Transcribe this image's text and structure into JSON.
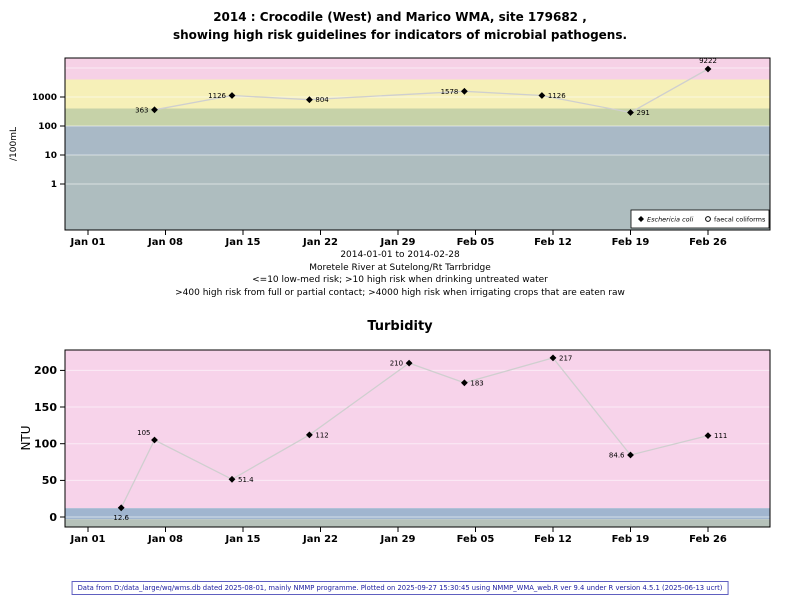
{
  "page": {
    "footer": "Data from D:/data_large/wq/wms.db dated 2025-08-01, mainly NMMP programme. Plotted on 2025-09-27 15:30:45 using NMMP_WMA_web.R ver 9.4 under R version 4.5.1 (2025-06-13 ucrt)"
  },
  "chart_data": [
    {
      "type": "line",
      "title_lines": [
        "2014 : Crocodile (West) and Marico WMA, site 179682 ,",
        "showing high risk guidelines for indicators of microbial pathogens."
      ],
      "ylabel": "/100mL",
      "yscale": "log",
      "ylim": [
        0.026,
        22100
      ],
      "xlim_days": [
        -2.08,
        61.6
      ],
      "x_ticks": [
        {
          "day": 0,
          "label": "Jan 01"
        },
        {
          "day": 7,
          "label": "Jan 08"
        },
        {
          "day": 14,
          "label": "Jan 15"
        },
        {
          "day": 21,
          "label": "Jan 22"
        },
        {
          "day": 28,
          "label": "Jan 29"
        },
        {
          "day": 35,
          "label": "Feb 05"
        },
        {
          "day": 42,
          "label": "Feb 12"
        },
        {
          "day": 49,
          "label": "Feb 19"
        },
        {
          "day": 56,
          "label": "Feb 26"
        }
      ],
      "y_ticks": [
        1,
        10,
        100,
        1000
      ],
      "gridlines": [
        1,
        10,
        100,
        1000,
        10000
      ],
      "bands": [
        {
          "from": 4000,
          "to": null,
          "color": "#f6d1e6"
        },
        {
          "from": 400,
          "to": 4000,
          "color": "#f6f0b8"
        },
        {
          "from": 100,
          "to": 400,
          "color": "#c6d2a8"
        },
        {
          "from": 10,
          "to": 100,
          "color": "#a9b9c6"
        },
        {
          "from": null,
          "to": 10,
          "color": "#aebdbf"
        }
      ],
      "series": [
        {
          "name": "Eschericia coli",
          "marker": "filled-diamond",
          "points": [
            {
              "day": 6,
              "value": 363,
              "label": "363",
              "label_side": "left"
            },
            {
              "day": 13,
              "value": 1126,
              "label": "1126",
              "label_side": "left"
            },
            {
              "day": 20,
              "value": 804,
              "label": "804",
              "label_side": "right"
            },
            {
              "day": 34,
              "value": 1578,
              "label": "1578",
              "label_side": "left"
            },
            {
              "day": 41,
              "value": 1126,
              "label": "1126",
              "label_side": "right"
            },
            {
              "day": 49,
              "value": 291,
              "label": "291",
              "label_side": "right"
            },
            {
              "day": 56,
              "value": 9222,
              "label": "9222",
              "label_side": "above"
            }
          ]
        },
        {
          "name": "faecal coliforms",
          "marker": "open-circle",
          "points": []
        }
      ],
      "legend": {
        "entries": [
          {
            "label": "Eschericia coli",
            "marker": "filled-diamond",
            "italic": true
          },
          {
            "label": "faecal coliforms",
            "marker": "open-circle",
            "italic": false
          }
        ]
      },
      "caption_lines": [
        "2014-01-01 to 2014-02-28",
        "Moretele River at Sutelong/Rt Tarrbridge",
        "<=10 low-med risk; >10 high risk when drinking untreated water",
        ">400 high risk from full or partial contact; >4000 high risk when irrigating crops that are eaten raw"
      ]
    },
    {
      "type": "line",
      "title": "Turbidity",
      "ylabel": "NTU",
      "yscale": "linear",
      "ylim": [
        -13.6,
        227.8
      ],
      "xlim_days": [
        -2.08,
        61.6
      ],
      "x_ticks": [
        {
          "day": 0,
          "label": "Jan 01"
        },
        {
          "day": 7,
          "label": "Jan 08"
        },
        {
          "day": 14,
          "label": "Jan 15"
        },
        {
          "day": 21,
          "label": "Jan 22"
        },
        {
          "day": 28,
          "label": "Jan 29"
        },
        {
          "day": 35,
          "label": "Feb 05"
        },
        {
          "day": 42,
          "label": "Feb 12"
        },
        {
          "day": 49,
          "label": "Feb 19"
        },
        {
          "day": 56,
          "label": "Feb 26"
        }
      ],
      "y_ticks": [
        0,
        50,
        100,
        150,
        200
      ],
      "gridlines": [
        0,
        50,
        100,
        150,
        200
      ],
      "bands": [
        {
          "from": 12,
          "to": null,
          "color": "#f7d3ea"
        },
        {
          "from": -3,
          "to": 12,
          "color": "#a0b5cf"
        },
        {
          "from": null,
          "to": -3,
          "color": "#b6c2ba"
        }
      ],
      "series": [
        {
          "name": "Turbidity",
          "marker": "filled-diamond",
          "points": [
            {
              "day": 3,
              "value": 12.6,
              "label": "12.6",
              "label_side": "below"
            },
            {
              "day": 6,
              "value": 105,
              "label": "105",
              "label_side": "left-above"
            },
            {
              "day": 13,
              "value": 51.4,
              "label": "51.4",
              "label_side": "right"
            },
            {
              "day": 20,
              "value": 112,
              "label": "112",
              "label_side": "right"
            },
            {
              "day": 29,
              "value": 210,
              "label": "210",
              "label_side": "left"
            },
            {
              "day": 34,
              "value": 183,
              "label": "183",
              "label_side": "right"
            },
            {
              "day": 42,
              "value": 217,
              "label": "217",
              "label_side": "right"
            },
            {
              "day": 49,
              "value": 84.6,
              "label": "84.6",
              "label_side": "left"
            },
            {
              "day": 56,
              "value": 111,
              "label": "111",
              "label_side": "right"
            }
          ]
        }
      ]
    }
  ]
}
